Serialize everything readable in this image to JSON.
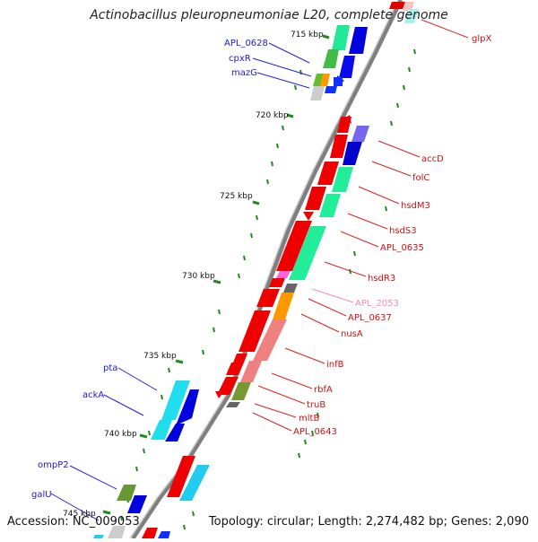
{
  "title": "Actinobacillus pleuropneumoniae L20, complete genome",
  "footer": {
    "accession": "Accession: NC_009053",
    "topology": "Topology: circular; Length: 2,274,482 bp; Genes: 2,090"
  },
  "kbp_ticks": [
    "715 kbp",
    "720 kbp",
    "725 kbp",
    "730 kbp",
    "735 kbp",
    "740 kbp",
    "745 kbp"
  ],
  "gene_labels": {
    "left": [
      "APL_0628",
      "cpxR",
      "mazG",
      "pta",
      "ackA",
      "ompP2",
      "galU"
    ],
    "right": [
      "glpX",
      "accD",
      "folC",
      "hsdM3",
      "hsdS3",
      "APL_0635",
      "hsdR3",
      "APL_2053",
      "APL_0637",
      "nusA",
      "infB",
      "rbfA",
      "truB",
      "mltB",
      "APL_0643"
    ]
  },
  "colors": {
    "left_label": "#0000cc",
    "right_label": "#cc0000",
    "faded_label": "#f08cc0",
    "backbone": "#808080",
    "tick": "#1e8c1e"
  }
}
